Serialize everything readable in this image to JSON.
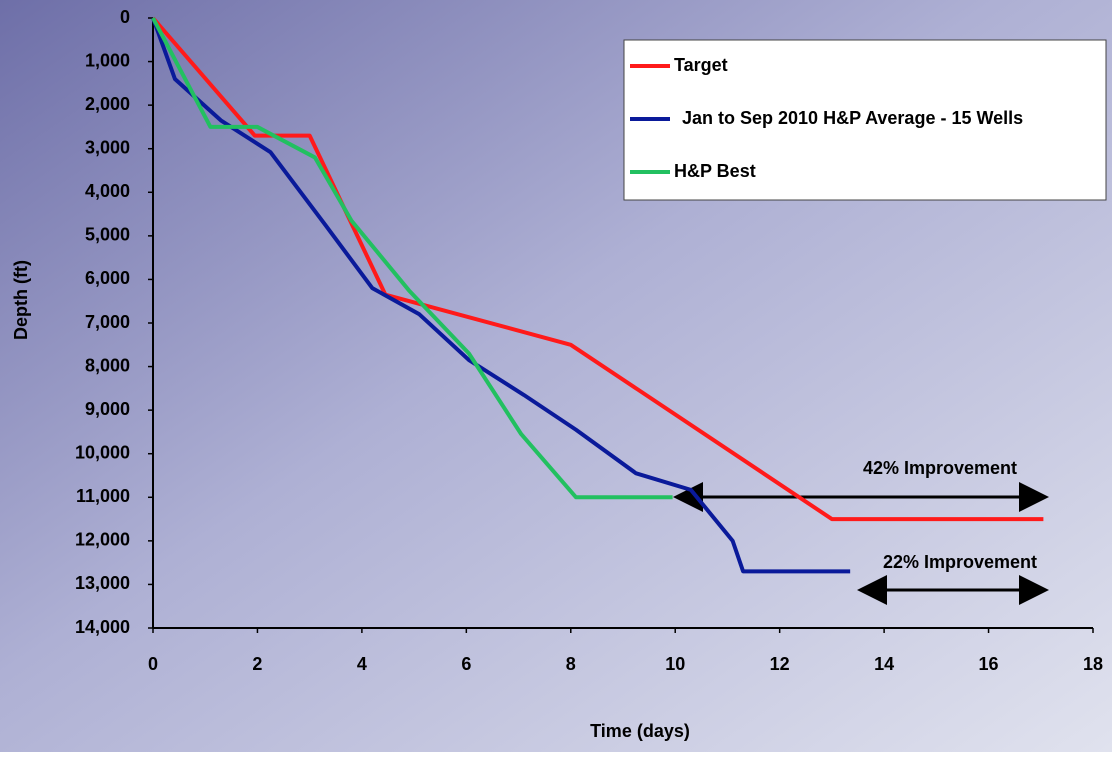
{
  "chart_data": {
    "type": "line",
    "x_label": "Time (days)",
    "y_label": "Depth (ft)",
    "xlim": [
      0,
      18
    ],
    "xticks": [
      0,
      2,
      4,
      6,
      8,
      10,
      12,
      14,
      16,
      18
    ],
    "ylim": [
      0,
      14000
    ],
    "y_inverted": true,
    "yticks": [
      0,
      {
        "value": 1000,
        "label": "1,000"
      },
      {
        "value": 2000,
        "label": "2,000"
      },
      {
        "value": 3000,
        "label": "3,000"
      },
      {
        "value": 4000,
        "label": "4,000"
      },
      {
        "value": 5000,
        "label": "5,000"
      },
      {
        "value": 6000,
        "label": "6,000"
      },
      {
        "value": 7000,
        "label": "7,000"
      },
      {
        "value": 8000,
        "label": "8,000"
      },
      {
        "value": 9000,
        "label": "9,000"
      },
      {
        "value": 10000,
        "label": "10,000"
      },
      {
        "value": 11000,
        "label": "11,000"
      },
      {
        "value": 12000,
        "label": "12,000"
      },
      {
        "value": 13000,
        "label": "13,000"
      },
      {
        "value": 14000,
        "label": "14,000"
      }
    ],
    "legend_position": "upper right",
    "series": [
      {
        "name": "Target",
        "color": "#ff1a1a",
        "x": [
          0,
          1.95,
          3.0,
          4.45,
          8.0,
          13.0,
          17.05
        ],
        "values": [
          0,
          2700,
          2700,
          6350,
          7500,
          11500,
          11500
        ]
      },
      {
        "name": "Jan to Sep 2010 H&P Average - 15 Wells",
        "color": "#0a1a9a",
        "x": [
          0,
          0.42,
          1.3,
          2.25,
          3.3,
          4.2,
          5.1,
          6.05,
          7.1,
          8.1,
          9.25,
          10.3,
          11.1,
          11.3,
          13.35
        ],
        "values": [
          0,
          1400,
          2350,
          3080,
          4750,
          6200,
          6800,
          7850,
          8650,
          9450,
          10450,
          10830,
          12000,
          12700,
          12700
        ]
      },
      {
        "name": "H&P Best",
        "color": "#22c060",
        "x": [
          0,
          1.1,
          2.0,
          3.1,
          3.8,
          4.9,
          6.05,
          7.05,
          8.1,
          9.95
        ],
        "values": [
          0,
          2500,
          2500,
          3200,
          4650,
          6250,
          7700,
          9550,
          11000,
          11000
        ]
      }
    ],
    "annotations": [
      "42% Improvement",
      "22% Improvement"
    ]
  }
}
